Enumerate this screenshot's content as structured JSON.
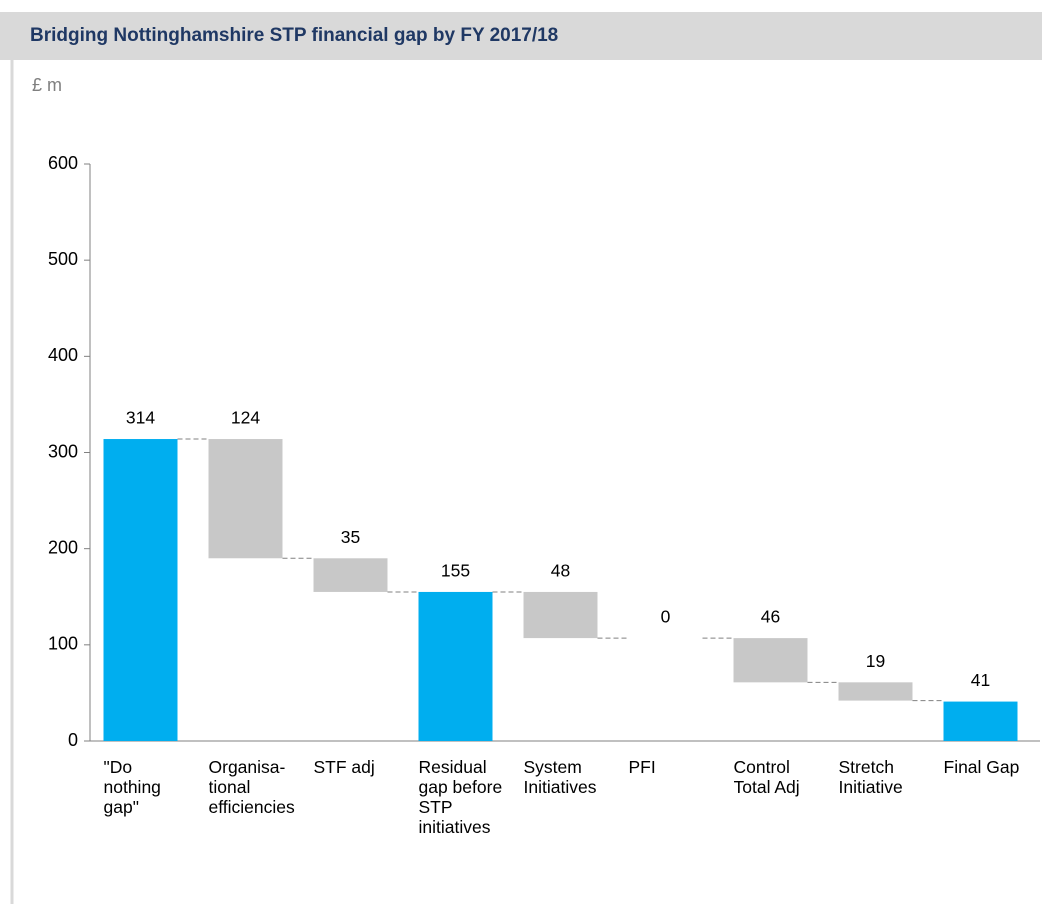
{
  "chart_data": {
    "type": "waterfall",
    "title": "Bridging Nottinghamshire STP financial gap by FY 2017/18",
    "y_label": "£ m",
    "categories": [
      "\"Do nothing gap\"",
      "Organisa-tional efficiencies",
      "STF adj",
      "Residual gap before STP initiatives",
      "System Initiatives",
      "PFI",
      "Control Total Adj",
      "Stretch Initiative",
      "Final Gap"
    ],
    "values": [
      314,
      124,
      35,
      155,
      48,
      0,
      46,
      19,
      41
    ],
    "measure": [
      "total",
      "decrease",
      "decrease",
      "total",
      "decrease",
      "decrease",
      "decrease",
      "decrease",
      "total"
    ],
    "total_color": "#00aeef",
    "change_color": "#c8c8c8",
    "ylim": [
      0,
      600
    ],
    "yticks": [
      0,
      100,
      200,
      300,
      400,
      500,
      600
    ],
    "grid": false
  }
}
